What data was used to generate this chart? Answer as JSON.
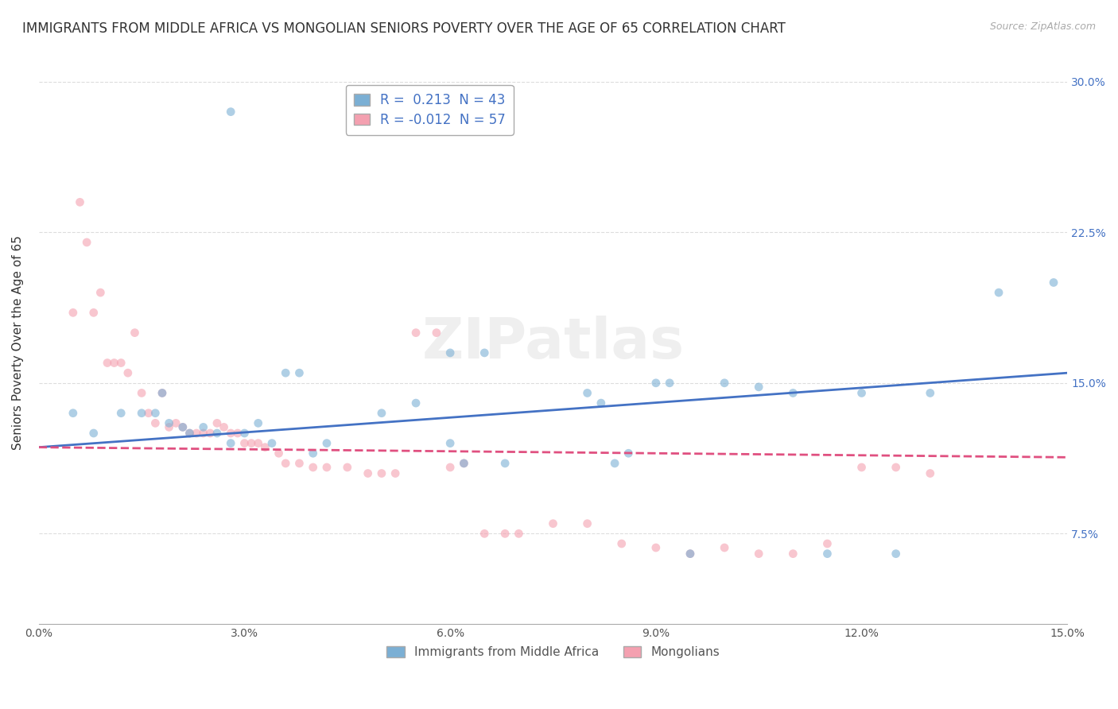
{
  "title": "IMMIGRANTS FROM MIDDLE AFRICA VS MONGOLIAN SENIORS POVERTY OVER THE AGE OF 65 CORRELATION CHART",
  "source": "Source: ZipAtlas.com",
  "ylabel": "Seniors Poverty Over the Age of 65",
  "xlim": [
    0,
    0.15
  ],
  "ylim": [
    0.03,
    0.31
  ],
  "xticks": [
    0.0,
    0.03,
    0.06,
    0.09,
    0.12,
    0.15
  ],
  "yticks": [
    0.075,
    0.15,
    0.225,
    0.3
  ],
  "ytick_labels": [
    "7.5%",
    "15.0%",
    "22.5%",
    "30.0%"
  ],
  "xtick_labels": [
    "0.0%",
    "3.0%",
    "6.0%",
    "9.0%",
    "12.0%",
    "15.0%"
  ],
  "legend_entries": [
    {
      "label": "Immigrants from Middle Africa",
      "color": "#7bafd4",
      "R": 0.213,
      "N": 43
    },
    {
      "label": "Mongolians",
      "color": "#f4a0b0",
      "R": -0.012,
      "N": 57
    }
  ],
  "blue_scatter_x": [
    0.028,
    0.018,
    0.008,
    0.012,
    0.015,
    0.017,
    0.019,
    0.021,
    0.022,
    0.024,
    0.026,
    0.028,
    0.03,
    0.032,
    0.034,
    0.036,
    0.038,
    0.04,
    0.042,
    0.05,
    0.055,
    0.06,
    0.065,
    0.06,
    0.062,
    0.068,
    0.08,
    0.082,
    0.084,
    0.086,
    0.09,
    0.092,
    0.095,
    0.1,
    0.105,
    0.11,
    0.115,
    0.12,
    0.125,
    0.13,
    0.14,
    0.148,
    0.005
  ],
  "blue_scatter_y": [
    0.285,
    0.145,
    0.125,
    0.135,
    0.135,
    0.135,
    0.13,
    0.128,
    0.125,
    0.128,
    0.125,
    0.12,
    0.125,
    0.13,
    0.12,
    0.155,
    0.155,
    0.115,
    0.12,
    0.135,
    0.14,
    0.165,
    0.165,
    0.12,
    0.11,
    0.11,
    0.145,
    0.14,
    0.11,
    0.115,
    0.15,
    0.15,
    0.065,
    0.15,
    0.148,
    0.145,
    0.065,
    0.145,
    0.065,
    0.145,
    0.195,
    0.2,
    0.135
  ],
  "pink_scatter_x": [
    0.005,
    0.006,
    0.007,
    0.008,
    0.009,
    0.01,
    0.011,
    0.012,
    0.013,
    0.014,
    0.015,
    0.016,
    0.017,
    0.018,
    0.019,
    0.02,
    0.021,
    0.022,
    0.023,
    0.024,
    0.025,
    0.026,
    0.027,
    0.028,
    0.029,
    0.03,
    0.031,
    0.032,
    0.033,
    0.035,
    0.036,
    0.038,
    0.04,
    0.042,
    0.045,
    0.048,
    0.05,
    0.052,
    0.055,
    0.058,
    0.06,
    0.062,
    0.065,
    0.068,
    0.07,
    0.075,
    0.08,
    0.085,
    0.09,
    0.095,
    0.1,
    0.105,
    0.11,
    0.115,
    0.12,
    0.125,
    0.13
  ],
  "pink_scatter_y": [
    0.185,
    0.24,
    0.22,
    0.185,
    0.195,
    0.16,
    0.16,
    0.16,
    0.155,
    0.175,
    0.145,
    0.135,
    0.13,
    0.145,
    0.128,
    0.13,
    0.128,
    0.125,
    0.125,
    0.125,
    0.125,
    0.13,
    0.128,
    0.125,
    0.125,
    0.12,
    0.12,
    0.12,
    0.118,
    0.115,
    0.11,
    0.11,
    0.108,
    0.108,
    0.108,
    0.105,
    0.105,
    0.105,
    0.175,
    0.175,
    0.108,
    0.11,
    0.075,
    0.075,
    0.075,
    0.08,
    0.08,
    0.07,
    0.068,
    0.065,
    0.068,
    0.065,
    0.065,
    0.07,
    0.108,
    0.108,
    0.105
  ],
  "blue_line_x": [
    0.0,
    0.15
  ],
  "blue_line_y": [
    0.118,
    0.155
  ],
  "pink_line_x": [
    0.0,
    0.15
  ],
  "pink_line_y": [
    0.118,
    0.113
  ],
  "title_fontsize": 12,
  "axis_label_fontsize": 11,
  "tick_fontsize": 10,
  "scatter_size": 60,
  "scatter_alpha": 0.6,
  "background_color": "#ffffff",
  "grid_color": "#dddddd",
  "blue_color": "#7bafd4",
  "pink_color": "#f4a0b0",
  "blue_line_color": "#4472c4",
  "pink_line_color": "#e05080"
}
